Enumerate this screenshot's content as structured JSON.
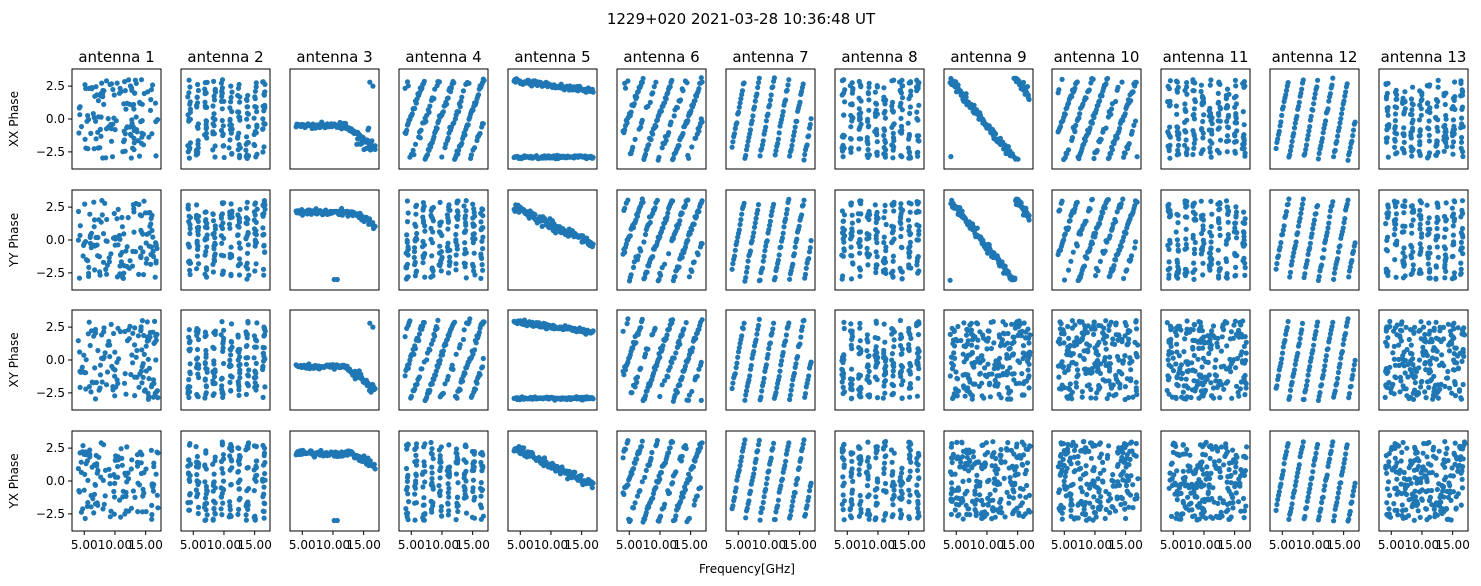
{
  "figure": {
    "title": "1229+020 2021-03-28 10:36:48 UT",
    "xlabel": "Frequency[GHz]",
    "marker_color": "#1f77b4"
  },
  "chart_data": {
    "type": "scatter",
    "title": "1229+020 2021-03-28 10:36:48 UT",
    "xlabel": "Frequency[GHz]",
    "grid": false,
    "xlim": [
      3.0,
      17.5
    ],
    "ylim": [
      -3.8,
      3.8
    ],
    "xticks": [
      "5.00",
      "10.00",
      "15.00"
    ],
    "yticks": [
      "2.5",
      "0.0",
      "−2.5"
    ],
    "antennas": [
      "antenna 1",
      "antenna 2",
      "antenna 3",
      "antenna 4",
      "antenna 5",
      "antenna 6",
      "antenna 7",
      "antenna 8",
      "antenna 9",
      "antenna 10",
      "antenna 11",
      "antenna 12",
      "antenna 13"
    ],
    "rows": [
      "XX Phase",
      "YY Phase",
      "XY Phase",
      "YX Phase"
    ],
    "panel_patterns": [
      [
        "noise",
        "bands_vertical",
        "flat_low",
        "bands_slope_mid",
        "two_band",
        "bands_slope_mid",
        "steep_lines",
        "bands_vertical",
        "diag_down",
        "bands_slope_mid",
        "bands_vertical",
        "steep_lines",
        "bands_vertical"
      ],
      [
        "noise",
        "bands_vertical",
        "flat_high",
        "bands_vertical",
        "decline",
        "bands_slope_mid",
        "steep_lines",
        "bands_vertical",
        "diag_down",
        "bands_slope_mid",
        "bands_vertical",
        "steep_lines",
        "bands_vertical"
      ],
      [
        "noise",
        "bands_vertical",
        "flat_low",
        "bands_slope_mid",
        "two_band",
        "bands_slope_mid",
        "steep_lines",
        "bands_vertical",
        "noise_dense",
        "noise_dense",
        "noise_dense",
        "steep_lines",
        "noise_dense"
      ],
      [
        "noise",
        "bands_vertical",
        "flat_high",
        "bands_vertical",
        "decline",
        "bands_slope_mid",
        "steep_lines",
        "bands_vertical",
        "noise_dense",
        "noise_dense",
        "noise_dense",
        "steep_lines",
        "noise_dense"
      ]
    ]
  }
}
